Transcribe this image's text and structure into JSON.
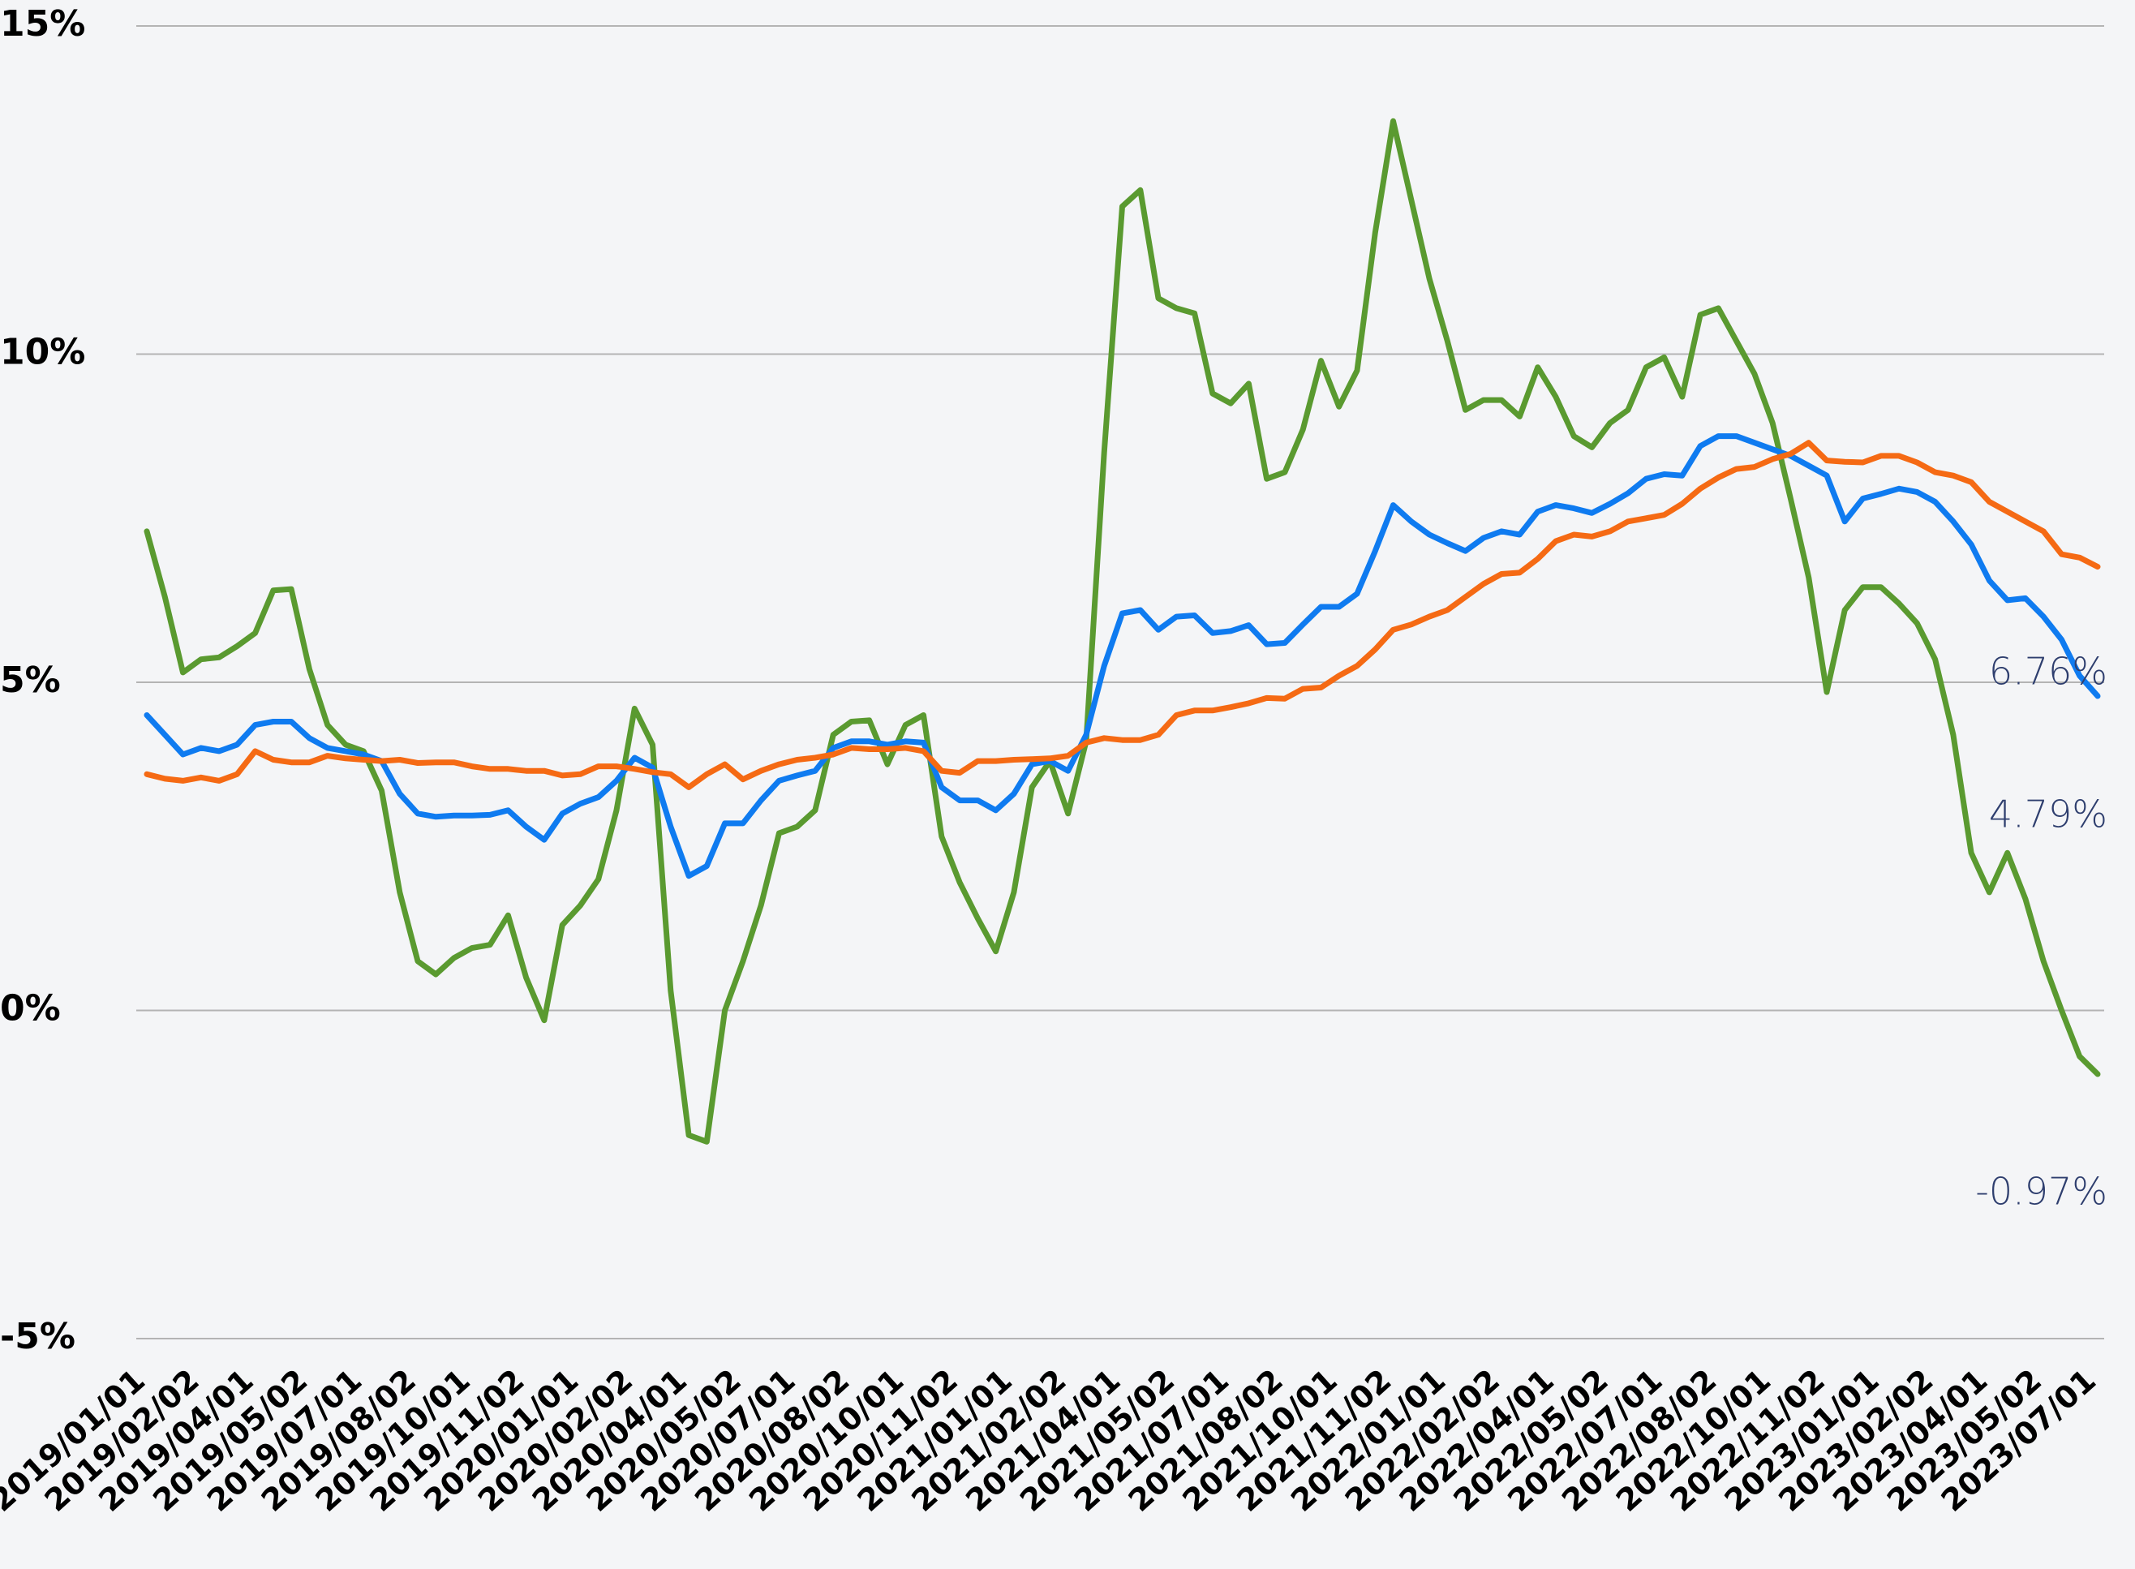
{
  "chart_data": {
    "type": "line",
    "categories": [
      "2019/01/01",
      null,
      null,
      "2019/02/02",
      null,
      null,
      "2019/04/01",
      null,
      null,
      "2019/05/02",
      null,
      null,
      "2019/07/01",
      null,
      null,
      "2019/08/02",
      null,
      null,
      "2019/10/01",
      null,
      null,
      "2019/11/02",
      null,
      null,
      "2020/01/01",
      null,
      null,
      "2020/02/02",
      null,
      null,
      "2020/04/01",
      null,
      null,
      "2020/05/02",
      null,
      null,
      "2020/07/01",
      null,
      null,
      "2020/08/02",
      null,
      null,
      "2020/10/01",
      null,
      null,
      "2020/11/02",
      null,
      null,
      "2021/01/01",
      null,
      null,
      "2021/02/02",
      null,
      null,
      "2021/04/01",
      null,
      null,
      "2021/05/02",
      null,
      null,
      "2021/07/01",
      null,
      null,
      "2021/08/02",
      null,
      null,
      "2021/10/01",
      null,
      null,
      "2021/11/02",
      null,
      null,
      "2022/01/01",
      null,
      null,
      "2022/02/02",
      null,
      null,
      "2022/04/01",
      null,
      null,
      "2022/05/02",
      null,
      null,
      "2022/07/01",
      null,
      null,
      "2022/08/02",
      null,
      null,
      "2022/10/01",
      null,
      null,
      "2022/11/02",
      null,
      null,
      "2023/01/01",
      null,
      null,
      "2023/02/02",
      null,
      null,
      "2023/04/01",
      null,
      null,
      "2023/05/02",
      null,
      null,
      "2023/07/01"
    ],
    "series": [
      {
        "name": "orange",
        "color": "#f56a14",
        "end_label": "6.76%",
        "values": [
          3.6,
          3.53,
          3.5,
          3.55,
          3.5,
          3.6,
          3.95,
          3.82,
          3.78,
          3.78,
          3.88,
          3.84,
          3.82,
          3.8,
          3.82,
          3.77,
          3.78,
          3.78,
          3.72,
          3.68,
          3.68,
          3.65,
          3.65,
          3.58,
          3.6,
          3.72,
          3.72,
          3.68,
          3.63,
          3.6,
          3.4,
          3.6,
          3.75,
          3.52,
          3.65,
          3.75,
          3.82,
          3.85,
          3.9,
          4.0,
          3.98,
          3.98,
          4.0,
          3.95,
          3.65,
          3.62,
          3.8,
          3.8,
          3.82,
          3.83,
          3.84,
          3.88,
          4.08,
          4.15,
          4.12,
          4.12,
          4.2,
          4.5,
          4.57,
          4.57,
          4.62,
          4.68,
          4.76,
          4.75,
          4.9,
          4.92,
          5.1,
          5.25,
          5.5,
          5.8,
          5.88,
          6.0,
          6.1,
          6.3,
          6.5,
          6.65,
          6.67,
          6.88,
          7.15,
          7.25,
          7.22,
          7.3,
          7.45,
          7.5,
          7.55,
          7.72,
          7.95,
          8.12,
          8.25,
          8.28,
          8.4,
          8.48,
          8.65,
          8.38,
          8.36,
          8.35,
          8.45,
          8.45,
          8.35,
          8.2,
          8.15,
          8.05,
          7.75,
          7.6,
          7.45,
          7.3,
          6.95,
          6.9,
          6.76
        ]
      },
      {
        "name": "blue",
        "color": "#0f7bf0",
        "end_label": "4.79%",
        "values": [
          4.5,
          4.2,
          3.9,
          4.0,
          3.95,
          4.05,
          4.35,
          4.4,
          4.4,
          4.15,
          4.0,
          3.95,
          3.9,
          3.8,
          3.3,
          3.0,
          2.95,
          2.97,
          2.97,
          2.98,
          3.05,
          2.8,
          2.6,
          3.0,
          3.15,
          3.25,
          3.5,
          3.85,
          3.7,
          2.8,
          2.05,
          2.2,
          2.85,
          2.85,
          3.2,
          3.5,
          3.58,
          3.65,
          4.0,
          4.1,
          4.1,
          4.05,
          4.1,
          4.08,
          3.4,
          3.2,
          3.2,
          3.05,
          3.3,
          3.75,
          3.8,
          3.65,
          4.2,
          5.25,
          6.05,
          6.1,
          5.8,
          6.0,
          6.02,
          5.75,
          5.78,
          5.87,
          5.58,
          5.6,
          5.88,
          6.15,
          6.15,
          6.35,
          7.0,
          7.7,
          7.45,
          7.25,
          7.12,
          7.0,
          7.2,
          7.3,
          7.25,
          7.6,
          7.7,
          7.65,
          7.58,
          7.72,
          7.88,
          8.1,
          8.17,
          8.15,
          8.6,
          8.75,
          8.75,
          8.65,
          8.55,
          8.45,
          8.3,
          8.15,
          7.45,
          7.8,
          7.87,
          7.95,
          7.9,
          7.75,
          7.45,
          7.1,
          6.55,
          6.25,
          6.28,
          6.0,
          5.65,
          5.1,
          4.79
        ]
      },
      {
        "name": "green",
        "color": "#5a9a30",
        "end_label": "-0.97%",
        "values": [
          7.3,
          6.3,
          5.15,
          5.35,
          5.38,
          5.55,
          5.75,
          6.4,
          6.42,
          5.2,
          4.35,
          4.05,
          3.95,
          3.35,
          1.8,
          0.75,
          0.55,
          0.8,
          0.95,
          1.0,
          1.45,
          0.5,
          -0.15,
          1.3,
          1.6,
          2.0,
          3.05,
          4.6,
          4.05,
          0.3,
          -1.9,
          -2.0,
          0.0,
          0.75,
          1.6,
          2.7,
          2.8,
          3.05,
          4.2,
          4.4,
          4.42,
          3.75,
          4.35,
          4.5,
          2.65,
          1.95,
          1.4,
          0.9,
          1.8,
          3.4,
          3.8,
          3.0,
          4.1,
          8.5,
          12.25,
          12.5,
          10.85,
          10.7,
          10.62,
          9.4,
          9.25,
          9.55,
          8.1,
          8.2,
          8.85,
          9.9,
          9.2,
          9.75,
          11.85,
          13.55,
          12.35,
          11.15,
          10.2,
          9.15,
          9.3,
          9.3,
          9.05,
          9.8,
          9.35,
          8.75,
          8.58,
          8.95,
          9.15,
          9.8,
          9.95,
          9.35,
          10.6,
          10.7,
          10.2,
          9.7,
          8.95,
          7.8,
          6.6,
          4.85,
          6.1,
          6.45,
          6.45,
          6.2,
          5.9,
          5.35,
          4.2,
          2.4,
          1.8,
          2.4,
          1.7,
          0.75,
          0.0,
          -0.7,
          -0.97
        ]
      }
    ],
    "ylim": [
      -5,
      15
    ],
    "yticks": [
      {
        "value": -5,
        "label": "-5%"
      },
      {
        "value": 0,
        "label": "0%"
      },
      {
        "value": 5,
        "label": "5%"
      },
      {
        "value": 10,
        "label": "10%"
      },
      {
        "value": 15,
        "label": "15%"
      }
    ],
    "grid": true
  }
}
